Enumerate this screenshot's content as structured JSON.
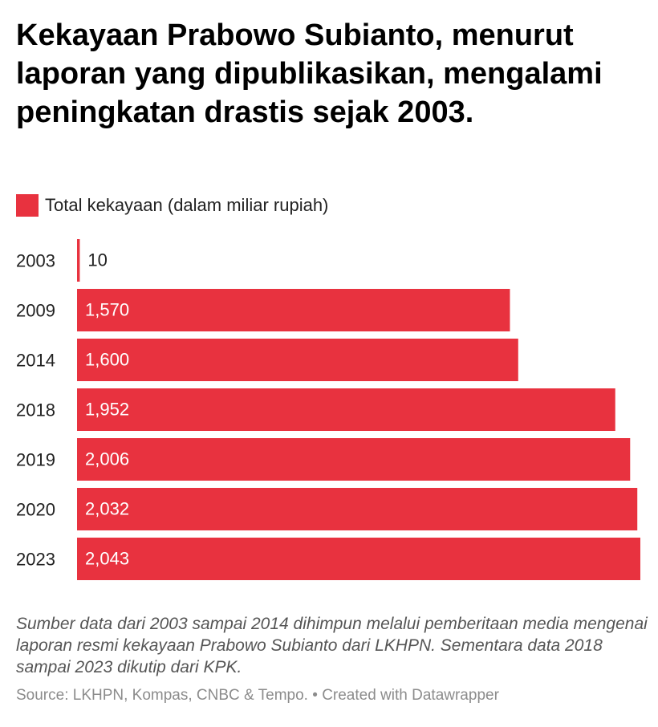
{
  "title": "Kekayaan Prabowo Subianto, menurut laporan yang dipublikasikan, mengalami peningkatan drastis sejak 2003.",
  "legend": {
    "label": "Total kekayaan (dalam miliar rupiah)",
    "color": "#e8323f"
  },
  "note": "Sumber data dari 2003 sampai 2014 dihimpun melalui pemberitaan media mengenai laporan resmi kekayaan Prabowo Subianto dari LKHPN. Sementara data 2018 sampai 2023 dikutip dari KPK.",
  "footer": {
    "source": "Source: LKHPN, Kompas, CNBC & Tempo.",
    "separator": "•",
    "credit": "Created with Datawrapper"
  },
  "chart_data": {
    "type": "bar",
    "orientation": "horizontal",
    "categories": [
      "2003",
      "2009",
      "2014",
      "2018",
      "2019",
      "2020",
      "2023"
    ],
    "values": [
      10,
      1570,
      1600,
      1952,
      2006,
      2032,
      2043
    ],
    "value_labels": [
      "10",
      "1,570",
      "1,600",
      "1,952",
      "2,006",
      "2,032",
      "2,043"
    ],
    "series": [
      {
        "name": "Total kekayaan (dalam miliar rupiah)",
        "values": [
          10,
          1570,
          1600,
          1952,
          2006,
          2032,
          2043
        ]
      }
    ],
    "xlim": [
      0,
      2043
    ],
    "bar_color": "#e8323f",
    "grid": false,
    "legend_position": "top-left"
  }
}
